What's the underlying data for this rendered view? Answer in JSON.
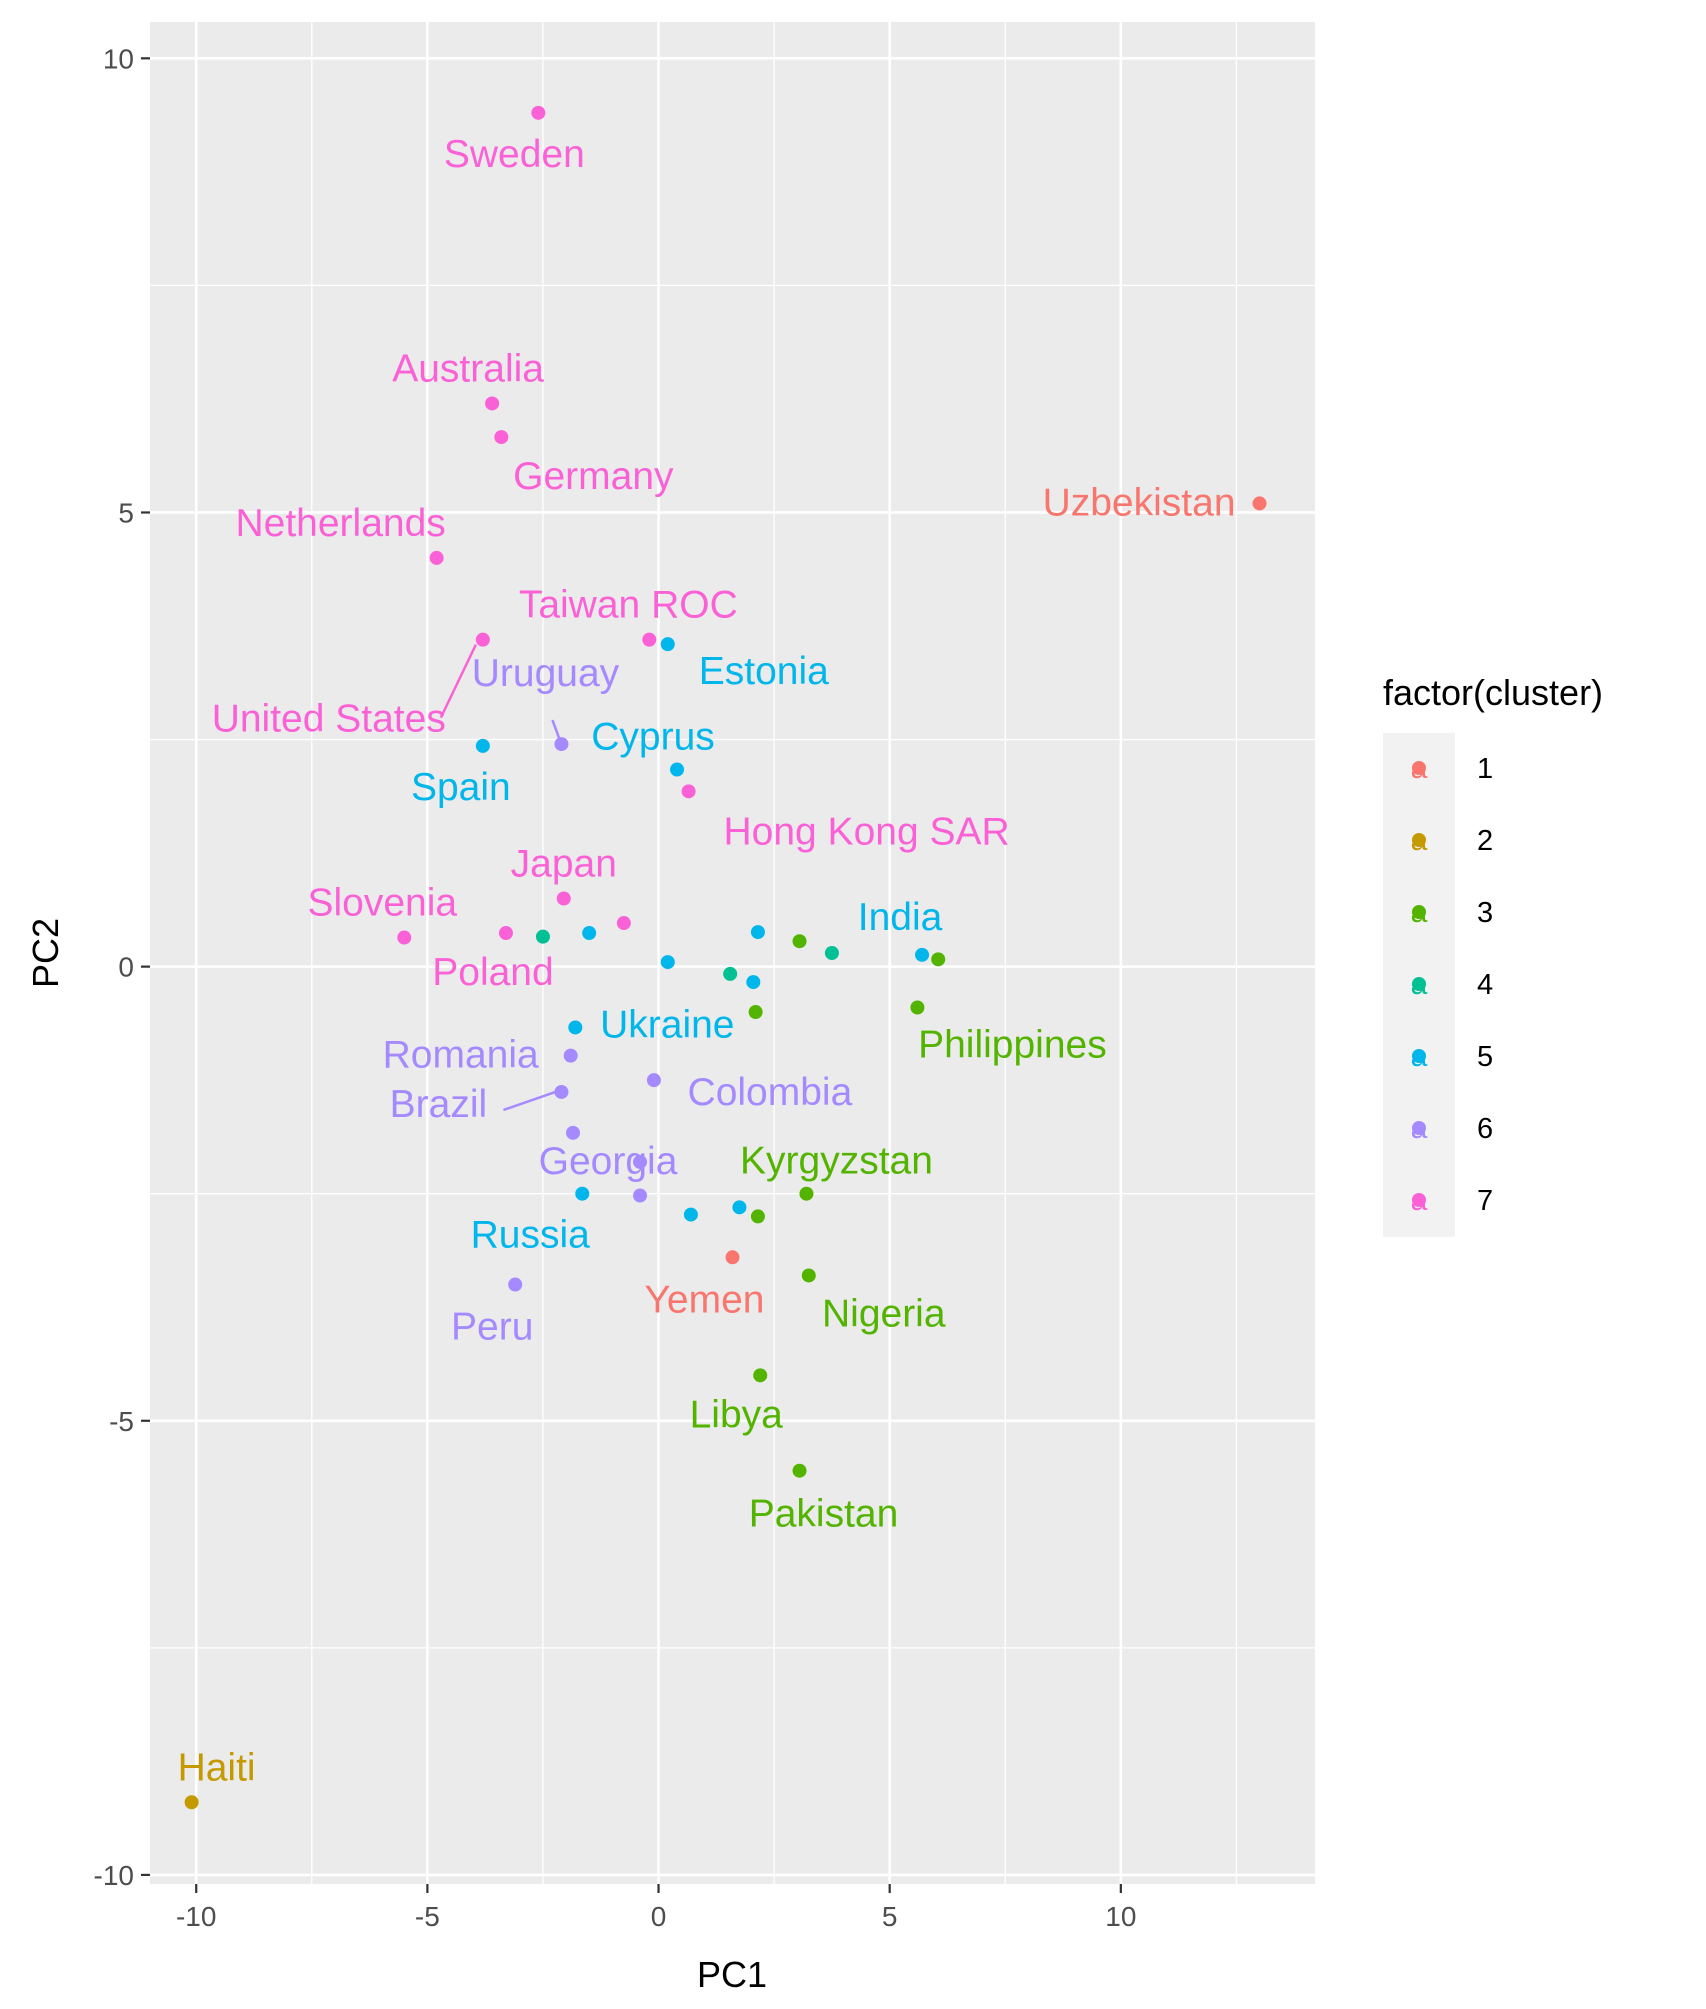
{
  "chart_data": {
    "type": "scatter",
    "title": "",
    "xlabel": "PC1",
    "ylabel": "PC2",
    "xlim": [
      -11,
      14.2
    ],
    "ylim": [
      -10.1,
      10.4
    ],
    "xticks": [
      -10,
      -5,
      0,
      5,
      10
    ],
    "yticks": [
      -10,
      -5,
      0,
      5,
      10
    ],
    "grid": true,
    "legend": {
      "title": "factor(cluster)",
      "position": "right",
      "entries": [
        {
          "key": "1",
          "color": "#F8766D"
        },
        {
          "key": "2",
          "color": "#C49A00"
        },
        {
          "key": "3",
          "color": "#53B400"
        },
        {
          "key": "4",
          "color": "#00C094"
        },
        {
          "key": "5",
          "color": "#00B6EB"
        },
        {
          "key": "6",
          "color": "#A58AFF"
        },
        {
          "key": "7",
          "color": "#FB61D7"
        }
      ]
    },
    "points": [
      {
        "x": 13.0,
        "y": 5.1,
        "cluster": "1",
        "label": "Uzbekistan"
      },
      {
        "x": 1.6,
        "y": -3.2,
        "cluster": "1",
        "label": "Yemen"
      },
      {
        "x": -10.1,
        "y": -9.2,
        "cluster": "2",
        "label": "Haiti"
      },
      {
        "x": 5.6,
        "y": -0.45,
        "cluster": "3",
        "label": "Philippines"
      },
      {
        "x": 3.2,
        "y": -2.5,
        "cluster": "3",
        "label": "Kyrgyzstan"
      },
      {
        "x": 3.25,
        "y": -3.4,
        "cluster": "3",
        "label": "Nigeria"
      },
      {
        "x": 2.2,
        "y": -4.5,
        "cluster": "3",
        "label": "Libya"
      },
      {
        "x": 3.05,
        "y": -5.55,
        "cluster": "3",
        "label": "Pakistan"
      },
      {
        "x": 3.05,
        "y": 0.28,
        "cluster": "3",
        "label": ""
      },
      {
        "x": 6.05,
        "y": 0.08,
        "cluster": "3",
        "label": ""
      },
      {
        "x": 2.1,
        "y": -0.5,
        "cluster": "3",
        "label": ""
      },
      {
        "x": 2.15,
        "y": -2.75,
        "cluster": "3",
        "label": ""
      },
      {
        "x": 3.75,
        "y": 0.15,
        "cluster": "4",
        "label": ""
      },
      {
        "x": -2.5,
        "y": 0.33,
        "cluster": "4",
        "label": ""
      },
      {
        "x": 1.55,
        "y": -0.08,
        "cluster": "4",
        "label": ""
      },
      {
        "x": 5.7,
        "y": 0.13,
        "cluster": "5",
        "label": "India"
      },
      {
        "x": 0.2,
        "y": 3.55,
        "cluster": "5",
        "label": "Estonia"
      },
      {
        "x": 0.4,
        "y": 2.17,
        "cluster": "5",
        "label": "Cyprus"
      },
      {
        "x": -3.8,
        "y": 2.43,
        "cluster": "5",
        "label": "Spain"
      },
      {
        "x": -1.8,
        "y": -0.67,
        "cluster": "5",
        "label": "Ukraine"
      },
      {
        "x": -1.65,
        "y": -2.5,
        "cluster": "5",
        "label": "Russia"
      },
      {
        "x": -1.5,
        "y": 0.37,
        "cluster": "5",
        "label": ""
      },
      {
        "x": 0.2,
        "y": 0.05,
        "cluster": "5",
        "label": ""
      },
      {
        "x": 2.15,
        "y": 0.38,
        "cluster": "5",
        "label": ""
      },
      {
        "x": 2.05,
        "y": -0.17,
        "cluster": "5",
        "label": ""
      },
      {
        "x": 0.7,
        "y": -2.73,
        "cluster": "5",
        "label": ""
      },
      {
        "x": 1.75,
        "y": -2.65,
        "cluster": "5",
        "label": ""
      },
      {
        "x": -2.1,
        "y": 2.45,
        "cluster": "6",
        "label": "Uruguay"
      },
      {
        "x": -1.9,
        "y": -0.98,
        "cluster": "6",
        "label": "Romania"
      },
      {
        "x": -2.1,
        "y": -1.38,
        "cluster": "6",
        "label": "Brazil"
      },
      {
        "x": -0.1,
        "y": -1.25,
        "cluster": "6",
        "label": "Colombia"
      },
      {
        "x": -0.4,
        "y": -2.15,
        "cluster": "6",
        "label": "Georgia"
      },
      {
        "x": -3.1,
        "y": -3.5,
        "cluster": "6",
        "label": "Peru"
      },
      {
        "x": -1.85,
        "y": -1.83,
        "cluster": "6",
        "label": ""
      },
      {
        "x": -0.4,
        "y": -2.52,
        "cluster": "6",
        "label": ""
      },
      {
        "x": -2.6,
        "y": 9.4,
        "cluster": "7",
        "label": "Sweden"
      },
      {
        "x": -3.6,
        "y": 6.2,
        "cluster": "7",
        "label": "Australia"
      },
      {
        "x": -3.4,
        "y": 5.83,
        "cluster": "7",
        "label": "Germany"
      },
      {
        "x": -4.8,
        "y": 4.5,
        "cluster": "7",
        "label": "Netherlands"
      },
      {
        "x": -0.2,
        "y": 3.6,
        "cluster": "7",
        "label": "Taiwan ROC"
      },
      {
        "x": -3.8,
        "y": 3.6,
        "cluster": "7",
        "label": "United States"
      },
      {
        "x": 0.65,
        "y": 1.93,
        "cluster": "7",
        "label": "Hong Kong SAR"
      },
      {
        "x": -2.05,
        "y": 0.75,
        "cluster": "7",
        "label": "Japan"
      },
      {
        "x": -5.5,
        "y": 0.32,
        "cluster": "7",
        "label": "Slovenia"
      },
      {
        "x": -3.3,
        "y": 0.37,
        "cluster": "7",
        "label": "Poland"
      },
      {
        "x": -0.75,
        "y": 0.48,
        "cluster": "7",
        "label": ""
      }
    ]
  }
}
